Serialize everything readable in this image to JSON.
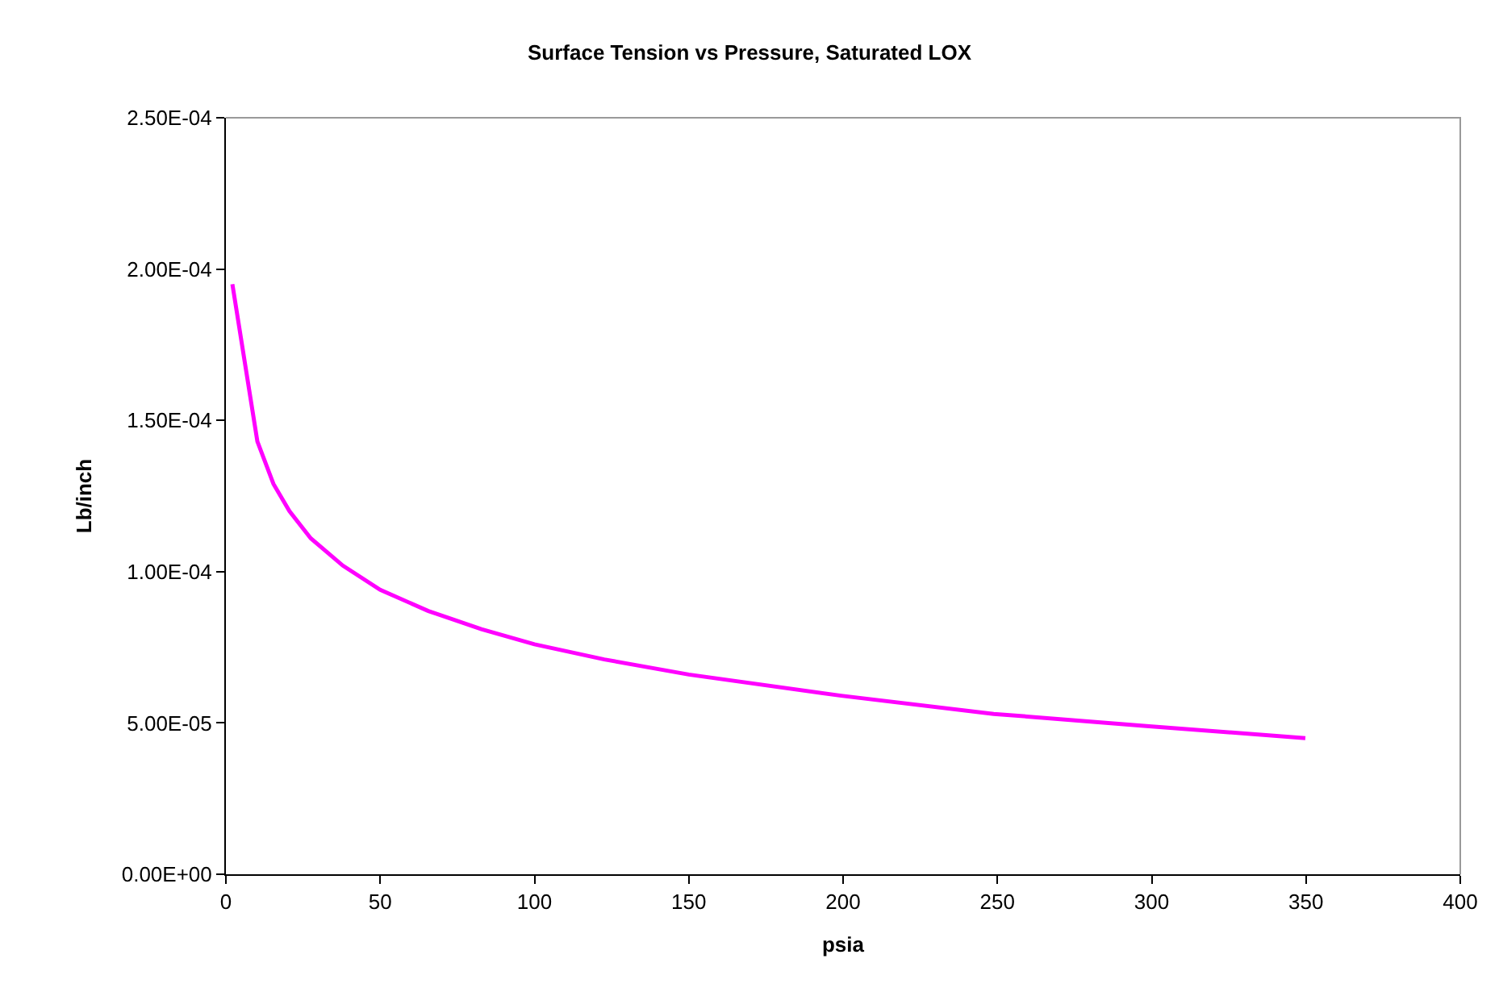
{
  "chart_data": {
    "type": "line",
    "title": "Surface Tension vs Pressure, Saturated LOX",
    "xlabel": "psia",
    "ylabel": "Lb/inch",
    "x": [
      2.1,
      10.2,
      15.4,
      20.6,
      27.5,
      37.9,
      50,
      65.6,
      82.8,
      100,
      122.6,
      150,
      199.4,
      248.8,
      298.3,
      349.8
    ],
    "series": [
      {
        "color": "#ff00ff",
        "values": [
          0.000195,
          0.000143,
          0.000129,
          0.00012,
          0.000111,
          0.000102,
          9.4e-05,
          8.7e-05,
          8.1e-05,
          7.6e-05,
          7.1e-05,
          6.6e-05,
          5.9e-05,
          5.3e-05,
          4.9e-05,
          4.5e-05
        ]
      }
    ],
    "xlim": [
      0,
      400
    ],
    "xticks": [
      0,
      50,
      100,
      150,
      200,
      250,
      300,
      350,
      400
    ],
    "ylim": [
      0,
      0.00025
    ],
    "yticks": [
      {
        "value": 0,
        "label": "0.00E+00"
      },
      {
        "value": 5e-05,
        "label": "5.00E-05"
      },
      {
        "value": 0.0001,
        "label": "1.00E-04"
      },
      {
        "value": 0.00015,
        "label": "1.50E-04"
      },
      {
        "value": 0.0002,
        "label": "2.00E-04"
      },
      {
        "value": 0.00025,
        "label": "2.50E-04"
      }
    ],
    "grid": false,
    "marker": "none",
    "line_style": "solid"
  }
}
